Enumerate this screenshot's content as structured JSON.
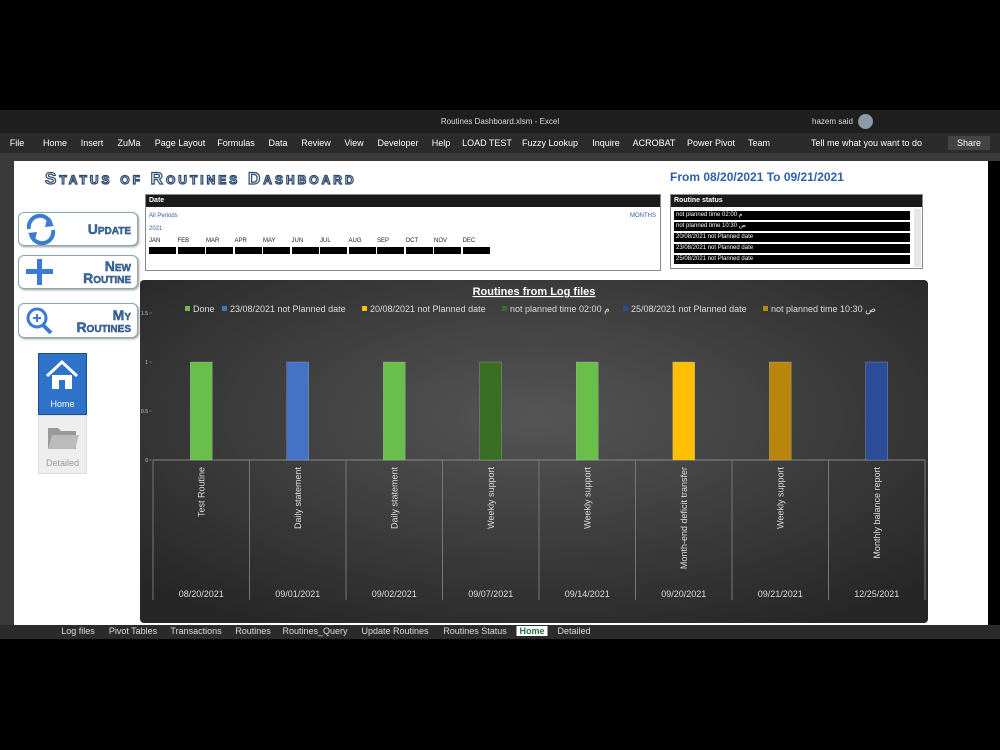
{
  "window": {
    "title": "Routines Dashboard.xlsm - Excel",
    "user": "hazem said",
    "share": "Share"
  },
  "ribbon": {
    "tabs": [
      "File",
      "Home",
      "Insert",
      "ZuMa",
      "Page Layout",
      "Formulas",
      "Data",
      "Review",
      "View",
      "Developer",
      "Help",
      "LOAD TEST",
      "Fuzzy Lookup",
      "Inquire",
      "ACROBAT",
      "Power Pivot",
      "Team"
    ],
    "search": "Tell me what you want to do"
  },
  "dashboard": {
    "title": "Status of Routines Dashboard",
    "range_label": "From 08/20/2021 To 09/21/2021",
    "buttons": [
      "Update",
      "New Routine",
      "My Routines"
    ],
    "nav": [
      "Home",
      "Detailed"
    ]
  },
  "date_slicer": {
    "title": "Date",
    "all": "All Periods",
    "level": "MONTHS",
    "year": "2021",
    "months": [
      "JAN",
      "FEB",
      "MAR",
      "APR",
      "MAY",
      "JUN",
      "JUL",
      "AUG",
      "SEP",
      "OCT",
      "NOV",
      "DEC"
    ]
  },
  "status_slicer": {
    "title": "Routine status",
    "items": [
      "not planned time م 02:00",
      "not planned time ص 10:30",
      "20/08/2021 not Planned date",
      "23/08/2021 not Planned date",
      "25/08/2021 not Planned date"
    ]
  },
  "chart_data": {
    "type": "bar",
    "stacked": true,
    "title": "Routines from Log files",
    "categories": [
      "Test Routine",
      "Daily statement",
      "Daily statement",
      "Weekly support",
      "Weekly support",
      "Month-end deficit transfer",
      "Weekly support",
      "Monthly balance report"
    ],
    "category_dates": [
      "08/20/2021",
      "09/01/2021",
      "09/02/2021",
      "09/07/2021",
      "09/14/2021",
      "09/20/2021",
      "09/21/2021",
      "12/25/2021"
    ],
    "ylim": [
      0,
      1.5
    ],
    "yticks": [
      0,
      0.5,
      1,
      1.5
    ],
    "legend": "top",
    "series": [
      {
        "name": "Done",
        "color": "#6abf4b",
        "values": [
          1,
          null,
          1,
          null,
          1,
          null,
          null,
          null
        ]
      },
      {
        "name": "23/08/2021 not Planned date",
        "color": "#4472c4",
        "values": [
          null,
          1,
          null,
          null,
          null,
          null,
          null,
          null
        ]
      },
      {
        "name": "20/08/2021 not Planned date",
        "color": "#ffc000",
        "values": [
          null,
          null,
          null,
          null,
          null,
          1,
          null,
          null
        ]
      },
      {
        "name": "not planned time م 02:00",
        "color": "#3b6e25",
        "values": [
          null,
          null,
          null,
          1,
          null,
          null,
          null,
          null
        ]
      },
      {
        "name": "25/08/2021 not Planned date",
        "color": "#2b4c98",
        "values": [
          null,
          null,
          null,
          null,
          null,
          null,
          null,
          1
        ]
      },
      {
        "name": "not planned time ص 10:30",
        "color": "#b8860b",
        "values": [
          null,
          null,
          null,
          null,
          null,
          null,
          1,
          null
        ]
      }
    ]
  },
  "sheet_tabs": {
    "tabs": [
      "Log files",
      "Pivot Tables",
      "Transactions",
      "Routines",
      "Routines_Query",
      "Update Routines",
      "Routines Status",
      "Home",
      "Detailed"
    ],
    "active": 7
  }
}
